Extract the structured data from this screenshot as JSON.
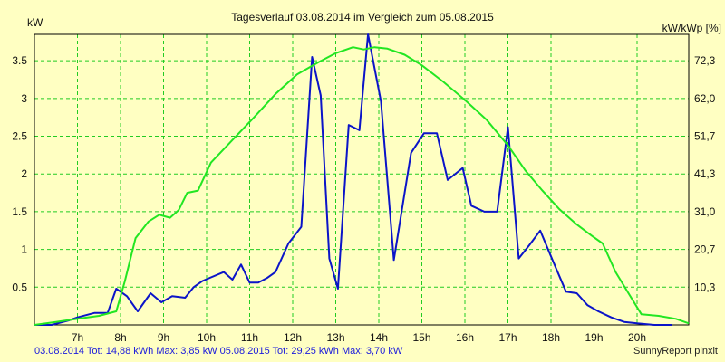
{
  "chart_data": {
    "type": "line",
    "title": "Tagesverlauf 03.08.2014 im Vergleich zum 05.08.2015",
    "ylabel_left": "kW",
    "ylabel_right": "kW/kWp [%]",
    "x_unit_hours": true,
    "xlim": [
      6.0,
      21.2
    ],
    "ylim": [
      0,
      3.85
    ],
    "x_ticks": [
      {
        "x": 7,
        "label": "7h"
      },
      {
        "x": 8,
        "label": "8h"
      },
      {
        "x": 9,
        "label": "9h"
      },
      {
        "x": 10,
        "label": "10h"
      },
      {
        "x": 11,
        "label": "11h"
      },
      {
        "x": 12,
        "label": "12h"
      },
      {
        "x": 13,
        "label": "13h"
      },
      {
        "x": 14,
        "label": "14h"
      },
      {
        "x": 15,
        "label": "15h"
      },
      {
        "x": 16,
        "label": "16h"
      },
      {
        "x": 17,
        "label": "17h"
      },
      {
        "x": 18,
        "label": "18h"
      },
      {
        "x": 19,
        "label": "19h"
      },
      {
        "x": 20,
        "label": "20h"
      }
    ],
    "y_ticks_left": [
      {
        "y": 0.5,
        "label": "0.5"
      },
      {
        "y": 1,
        "label": "1"
      },
      {
        "y": 1.5,
        "label": "1.5"
      },
      {
        "y": 2,
        "label": "2"
      },
      {
        "y": 2.5,
        "label": "2.5"
      },
      {
        "y": 3,
        "label": "3"
      },
      {
        "y": 3.5,
        "label": "3.5"
      }
    ],
    "y_ticks_right": [
      {
        "y": 0.5,
        "label": "10,3"
      },
      {
        "y": 1,
        "label": "20,7"
      },
      {
        "y": 1.5,
        "label": "31,0"
      },
      {
        "y": 2,
        "label": "41,3"
      },
      {
        "y": 2.5,
        "label": "51,7"
      },
      {
        "y": 3,
        "label": "62,0"
      },
      {
        "y": 3.5,
        "label": "72,3"
      }
    ],
    "grid": true,
    "series": [
      {
        "name": "03.08.2014",
        "color": "#0b14c8",
        "x": [
          6.0,
          6.4,
          6.8,
          7.0,
          7.4,
          7.7,
          7.9,
          8.15,
          8.4,
          8.7,
          8.95,
          9.2,
          9.5,
          9.7,
          9.9,
          10.1,
          10.4,
          10.6,
          10.8,
          11.0,
          11.2,
          11.4,
          11.6,
          11.9,
          12.2,
          12.45,
          12.65,
          12.85,
          13.05,
          13.3,
          13.55,
          13.75,
          14.05,
          14.35,
          14.75,
          15.05,
          15.35,
          15.6,
          15.95,
          16.15,
          16.45,
          16.75,
          17.0,
          17.25,
          17.5,
          17.75,
          18.05,
          18.35,
          18.6,
          18.85,
          19.1,
          19.4,
          19.7,
          20.0,
          20.4,
          20.8
        ],
        "y": [
          0,
          0,
          0.06,
          0.1,
          0.16,
          0.16,
          0.48,
          0.38,
          0.18,
          0.42,
          0.3,
          0.38,
          0.36,
          0.5,
          0.58,
          0.63,
          0.7,
          0.6,
          0.8,
          0.56,
          0.56,
          0.62,
          0.7,
          1.08,
          1.3,
          3.55,
          3.04,
          0.88,
          0.48,
          2.65,
          2.58,
          3.85,
          2.96,
          0.86,
          2.28,
          2.54,
          2.54,
          1.92,
          2.08,
          1.58,
          1.5,
          1.5,
          2.62,
          0.88,
          1.06,
          1.25,
          0.84,
          0.44,
          0.42,
          0.26,
          0.18,
          0.1,
          0.04,
          0.02,
          0,
          0
        ]
      },
      {
        "name": "05.08.2015",
        "color": "#22e622",
        "x": [
          6.0,
          6.5,
          7.0,
          7.5,
          7.9,
          8.1,
          8.35,
          8.65,
          8.9,
          9.15,
          9.35,
          9.55,
          9.8,
          10.1,
          10.6,
          11.1,
          11.6,
          12.1,
          12.6,
          13.0,
          13.4,
          13.65,
          13.9,
          14.2,
          14.6,
          15.0,
          15.5,
          16.0,
          16.5,
          17.0,
          17.4,
          17.8,
          18.2,
          18.6,
          18.95,
          19.2,
          19.5,
          19.8,
          20.1,
          20.5,
          20.9,
          21.2
        ],
        "y": [
          0,
          0.04,
          0.08,
          0.12,
          0.18,
          0.58,
          1.15,
          1.37,
          1.46,
          1.42,
          1.52,
          1.75,
          1.78,
          2.15,
          2.45,
          2.75,
          3.06,
          3.32,
          3.48,
          3.6,
          3.68,
          3.65,
          3.68,
          3.66,
          3.58,
          3.44,
          3.22,
          2.98,
          2.72,
          2.38,
          2.05,
          1.78,
          1.53,
          1.33,
          1.18,
          1.08,
          0.7,
          0.42,
          0.14,
          0.12,
          0.08,
          0.02
        ]
      }
    ]
  },
  "footer": {
    "series1_text": "03.08.2014 Tot: 14,88 kWh Max: 3,85 kW",
    "series1_color": "#1a1adc",
    "series2_text": "05.08.2015 Tot: 29,25 kWh Max: 3,70 kW",
    "series2_color": "#1a1adc",
    "credit": "SunnyReport pinxit"
  }
}
